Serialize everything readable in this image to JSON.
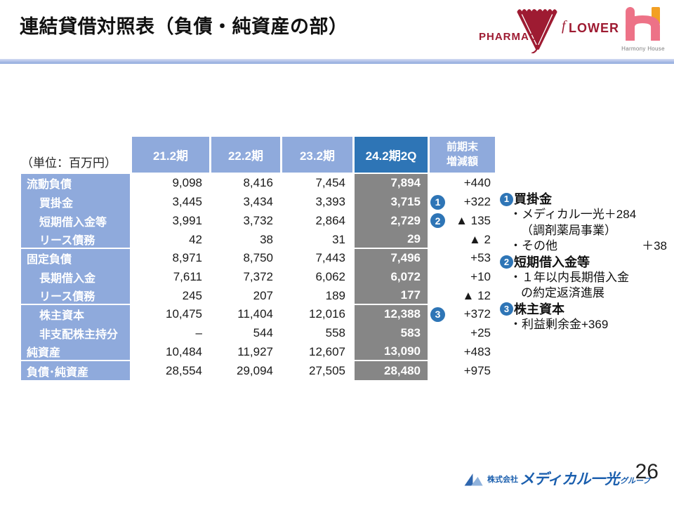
{
  "slide": {
    "title": "連結貸借対照表（負債・純資産の部）",
    "page_number": "26"
  },
  "colors": {
    "header_light_blue": "#8faadc",
    "header_dark_blue": "#2e75b6",
    "highlight_gray": "#868686",
    "badge_blue": "#2e75b6",
    "logo_maroon": "#9e1b32",
    "logo_pink": "#ed7287",
    "logo_orange": "#f2a024",
    "footer_blue": "#1b5fae"
  },
  "table": {
    "unit_label": "（単位：百万円）",
    "columns": [
      "21.2期",
      "22.2期",
      "23.2期",
      "24.2期2Q",
      "前期末\n増減額"
    ],
    "rows": [
      {
        "label": "流動負債",
        "indent": false,
        "values": [
          "9,098",
          "8,416",
          "7,454",
          "7,894"
        ],
        "change": "+440",
        "badge": "",
        "group_end": false
      },
      {
        "label": "買掛金",
        "indent": true,
        "values": [
          "3,445",
          "3,434",
          "3,393",
          "3,715"
        ],
        "change": "+322",
        "badge": "1",
        "group_end": false
      },
      {
        "label": "短期借入金等",
        "indent": true,
        "values": [
          "3,991",
          "3,732",
          "2,864",
          "2,729"
        ],
        "change": "▲ 135",
        "badge": "2",
        "group_end": false
      },
      {
        "label": "リース債務",
        "indent": true,
        "values": [
          "42",
          "38",
          "31",
          "29"
        ],
        "change": "▲ 2",
        "badge": "",
        "group_end": true
      },
      {
        "label": "固定負債",
        "indent": false,
        "values": [
          "8,971",
          "8,750",
          "7,443",
          "7,496"
        ],
        "change": "+53",
        "badge": "",
        "group_end": false
      },
      {
        "label": "長期借入金",
        "indent": true,
        "values": [
          "7,611",
          "7,372",
          "6,062",
          "6,072"
        ],
        "change": "+10",
        "badge": "",
        "group_end": false
      },
      {
        "label": "リース債務",
        "indent": true,
        "values": [
          "245",
          "207",
          "189",
          "177"
        ],
        "change": "▲ 12",
        "badge": "",
        "group_end": true
      },
      {
        "label": "株主資本",
        "indent": true,
        "values": [
          "10,475",
          "11,404",
          "12,016",
          "12,388"
        ],
        "change": "+372",
        "badge": "3",
        "group_end": false
      },
      {
        "label": "非支配株主持分",
        "indent": true,
        "values": [
          "–",
          "544",
          "558",
          "583"
        ],
        "change": "+25",
        "badge": "",
        "group_end": false
      },
      {
        "label": "純資産",
        "indent": false,
        "values": [
          "10,484",
          "11,927",
          "12,607",
          "13,090"
        ],
        "change": "+483",
        "badge": "",
        "group_end": true
      },
      {
        "label": "負債･純資産",
        "indent": false,
        "values": [
          "28,554",
          "29,094",
          "27,505",
          "28,480"
        ],
        "change": "+975",
        "badge": "",
        "group_end": false
      }
    ]
  },
  "notes": [
    {
      "badge": "1",
      "title": "買掛金",
      "lines": [
        {
          "text": "・メディカル一光＋284",
          "indent": false
        },
        {
          "text": "（調剤薬局事業）",
          "indent": true
        },
        {
          "text": "・その他",
          "right": "＋38",
          "indent": false
        }
      ]
    },
    {
      "badge": "2",
      "title": "短期借入金等",
      "lines": [
        {
          "text": "・１年以内長期借入金",
          "indent": false
        },
        {
          "text": "の約定返済進展",
          "indent": true
        }
      ]
    },
    {
      "badge": "3",
      "title": "株主資本",
      "lines": [
        {
          "text": "・利益剰余金+369",
          "indent": false
        }
      ]
    }
  ],
  "logos": {
    "pharmacy_flower": {
      "text_left": "PHARMAC",
      "script_f": "f",
      "text_right": "LOWER"
    },
    "harmony_house": {
      "caption": "Harmony House"
    },
    "footer": {
      "company_prefix": "株式会社",
      "company_name": "メディカル一光",
      "company_suffix": "グループ"
    }
  }
}
